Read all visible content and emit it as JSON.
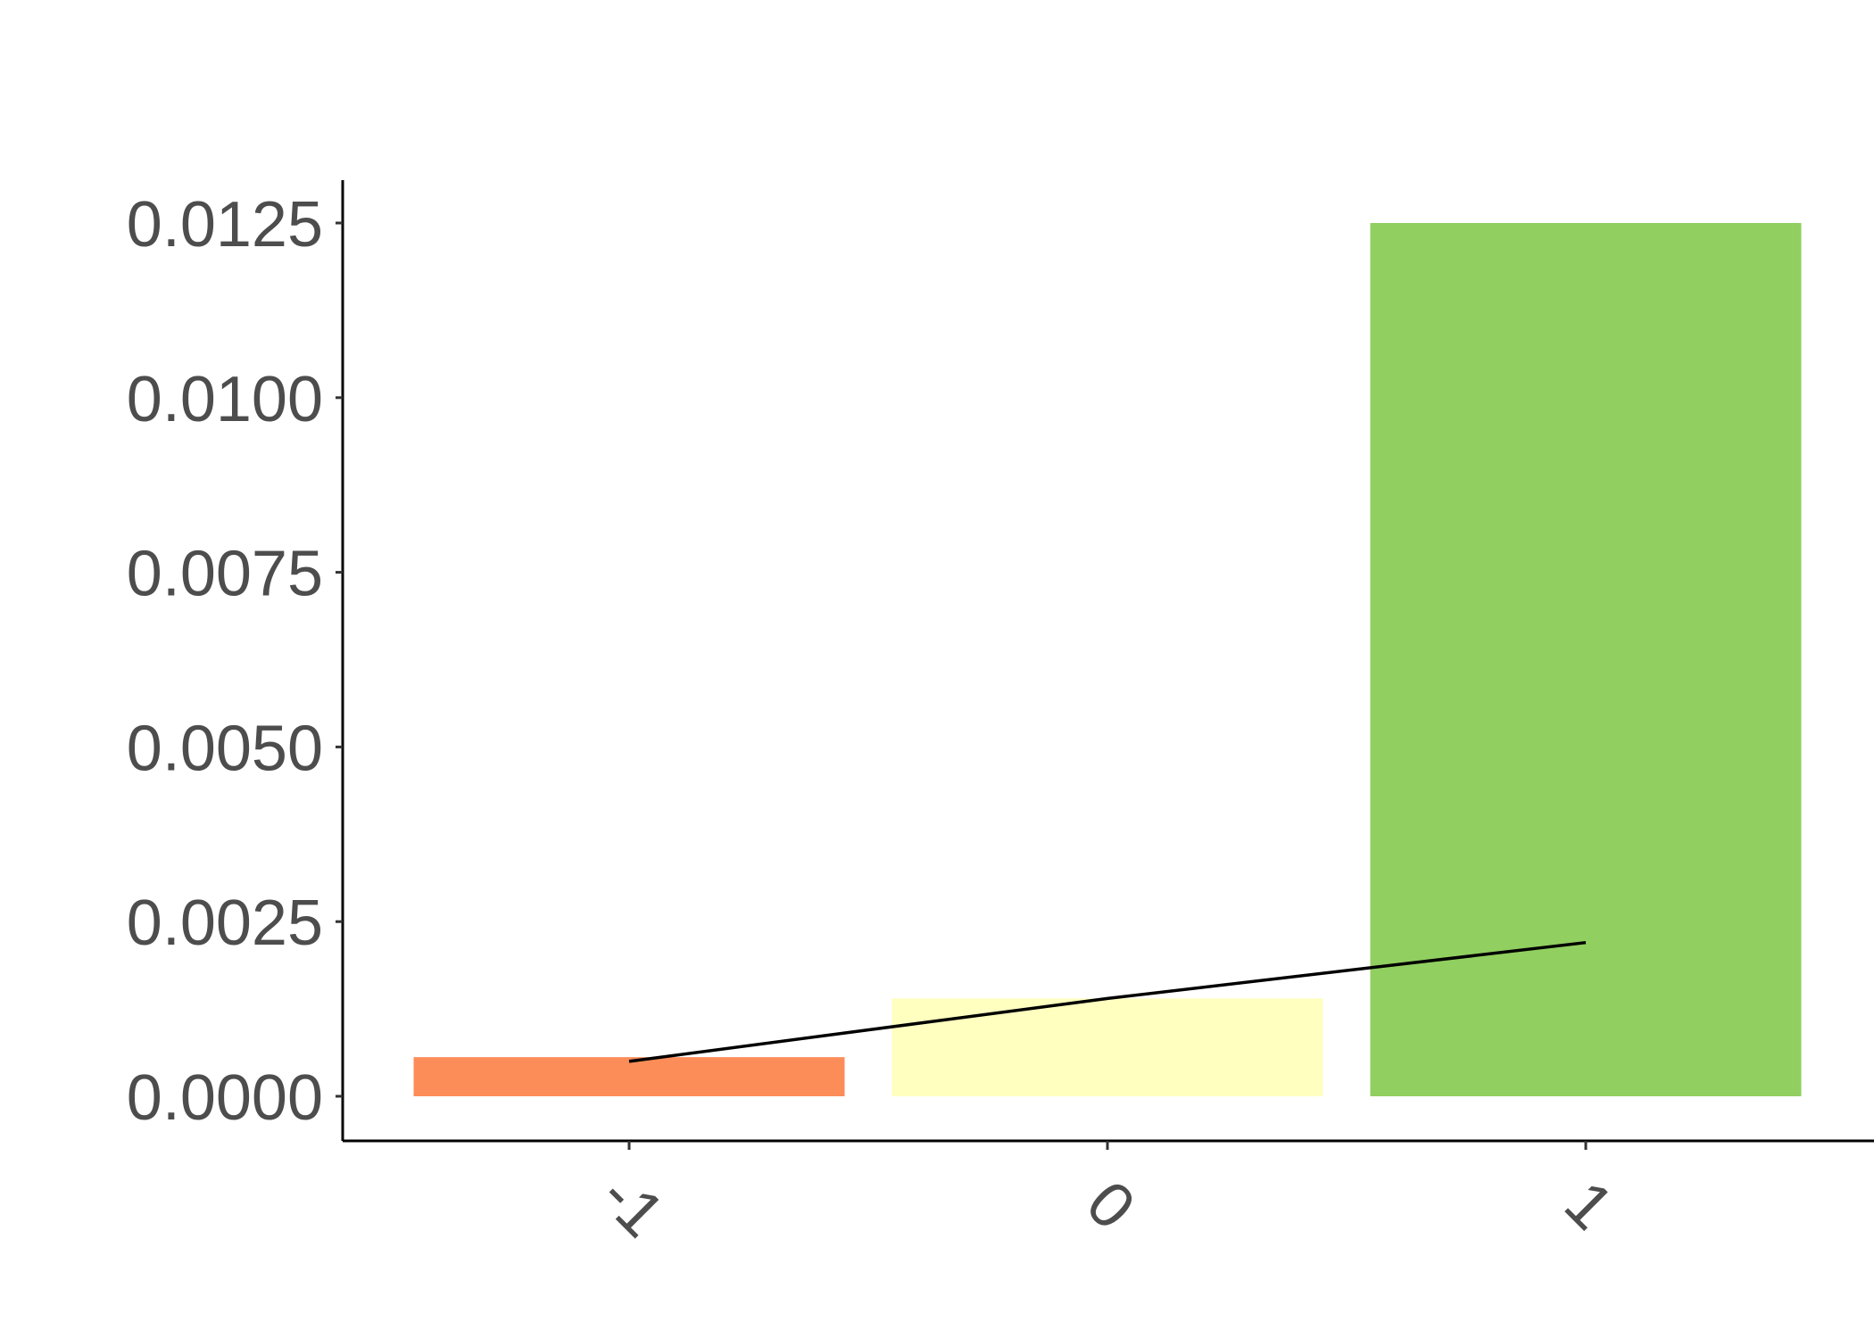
{
  "chart_data": {
    "type": "bar",
    "title": "",
    "xlabel": "",
    "ylabel": "",
    "categories": [
      "-1",
      "0",
      "1"
    ],
    "values": [
      0.00056,
      0.0014,
      0.0125
    ],
    "bar_colors": [
      "#fc8d59",
      "#ffffbf",
      "#91cf60"
    ],
    "line_series": {
      "values": [
        0.0005,
        0.0014,
        0.0022
      ],
      "color": "#000000"
    },
    "ylim": [
      0,
      0.0132
    ],
    "y_ticks": [
      0.0,
      0.0025,
      0.005,
      0.0075,
      0.01,
      0.0125
    ],
    "y_tick_labels": [
      "0.0000",
      "0.0025",
      "0.0050",
      "0.0075",
      "0.0100",
      "0.0125"
    ],
    "x_tick_labels": [
      "-1",
      "0",
      "1"
    ],
    "grid": false,
    "legend": "none"
  }
}
